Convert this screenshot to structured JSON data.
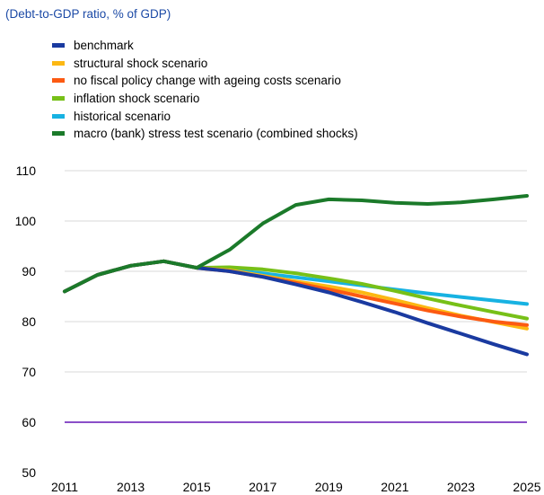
{
  "subtitle": "(Debt-to-GDP ratio, % of GDP)",
  "legend": [
    {
      "label": "benchmark",
      "color": "#1a3aa0"
    },
    {
      "label": "structural shock scenario",
      "color": "#fcb813"
    },
    {
      "label": "no fiscal policy change with ageing costs scenario",
      "color": "#fc5a12"
    },
    {
      "label": "inflation shock scenario",
      "color": "#77c018"
    },
    {
      "label": "historical scenario",
      "color": "#17b2e2"
    },
    {
      "label": "macro (bank) stress test scenario (combined shocks)",
      "color": "#1b7a2a"
    }
  ],
  "chart_data": {
    "type": "line",
    "x": [
      2011,
      2012,
      2013,
      2014,
      2015,
      2016,
      2017,
      2018,
      2019,
      2020,
      2021,
      2022,
      2023,
      2024,
      2025
    ],
    "xticks": [
      2011,
      2013,
      2015,
      2017,
      2019,
      2021,
      2023,
      2025
    ],
    "yticks": [
      50,
      60,
      70,
      80,
      90,
      100,
      110
    ],
    "ylim": [
      50,
      110
    ],
    "grid": true,
    "reference_line": {
      "value": 60,
      "color": "#8a4fc8"
    },
    "series": [
      {
        "name": "historical scenario",
        "color": "#17b2e2",
        "values": [
          86.0,
          89.3,
          91.1,
          92.0,
          90.7,
          90.3,
          89.6,
          88.8,
          88.0,
          87.2,
          86.4,
          85.6,
          84.9,
          84.2,
          83.5
        ]
      },
      {
        "name": "inflation shock scenario",
        "color": "#77c018",
        "values": [
          86.0,
          89.3,
          91.1,
          92.0,
          90.7,
          90.8,
          90.4,
          89.6,
          88.6,
          87.5,
          86.1,
          84.6,
          83.2,
          81.9,
          80.6
        ]
      },
      {
        "name": "structural shock scenario",
        "color": "#fcb813",
        "values": [
          86.0,
          89.3,
          91.1,
          92.0,
          90.7,
          90.2,
          89.1,
          88.0,
          87.0,
          85.8,
          84.3,
          82.7,
          81.2,
          79.9,
          78.6
        ]
      },
      {
        "name": "no fiscal policy change with ageing costs scenario",
        "color": "#fc5a12",
        "values": [
          86.0,
          89.3,
          91.1,
          92.0,
          90.7,
          90.0,
          88.9,
          87.7,
          86.4,
          85.0,
          83.6,
          82.2,
          81.0,
          80.0,
          79.3
        ]
      },
      {
        "name": "benchmark",
        "color": "#1a3aa0",
        "values": [
          86.0,
          89.3,
          91.1,
          92.0,
          90.7,
          90.0,
          88.9,
          87.4,
          85.8,
          83.9,
          81.9,
          79.7,
          77.6,
          75.5,
          73.5
        ]
      },
      {
        "name": "macro (bank) stress test scenario (combined shocks)",
        "color": "#1b7a2a",
        "values": [
          86.0,
          89.3,
          91.1,
          92.0,
          90.7,
          94.3,
          99.5,
          103.2,
          104.3,
          104.1,
          103.6,
          103.4,
          103.7,
          104.3,
          105.0
        ]
      }
    ]
  }
}
